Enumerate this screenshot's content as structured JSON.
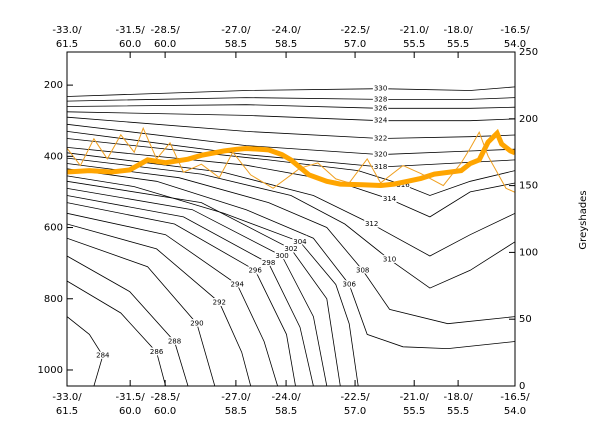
{
  "chart_data": {
    "type": "contour",
    "xlim": [
      0,
      100
    ],
    "xticks": [
      {
        "value": 0,
        "label": [
          "-33.0/",
          "61.5"
        ]
      },
      {
        "value": 14.1,
        "label": [
          "-31.5/",
          "60.0"
        ]
      },
      {
        "value": 21.9,
        "label": [
          "-28.5/",
          "60.0"
        ]
      },
      {
        "value": 37.7,
        "label": [
          "-27.0/",
          "58.5"
        ]
      },
      {
        "value": 48.9,
        "label": [
          "-24.0/",
          "58.5"
        ]
      },
      {
        "value": 64.3,
        "label": [
          "-22.5/",
          "57.0"
        ]
      },
      {
        "value": 77.5,
        "label": [
          "-21.0/",
          "55.5"
        ]
      },
      {
        "value": 87.3,
        "label": [
          "-18.0/",
          "55.5"
        ]
      },
      {
        "value": 100,
        "label": [
          "-16.5/",
          "54.0"
        ]
      }
    ],
    "ylim": [
      1045,
      107
    ],
    "yticks": [
      200,
      400,
      600,
      800,
      1000
    ],
    "y2label": "Greyshades",
    "y2lim": [
      0,
      250
    ],
    "y2ticks": [
      0,
      50,
      100,
      150,
      200,
      250
    ],
    "contour_color": "#000000",
    "contours": [
      {
        "level": 284,
        "x": [
          0,
          5,
          8,
          6
        ],
        "y": [
          850,
          900,
          960,
          1045
        ]
      },
      {
        "level": 286,
        "x": [
          0,
          12,
          20,
          22
        ],
        "y": [
          750,
          840,
          950,
          1045
        ]
      },
      {
        "level": 288,
        "x": [
          0,
          14,
          24,
          27
        ],
        "y": [
          680,
          780,
          920,
          1045
        ]
      },
      {
        "level": 290,
        "x": [
          0,
          18,
          29,
          33
        ],
        "y": [
          630,
          710,
          870,
          1045
        ]
      },
      {
        "level": 292,
        "x": [
          0,
          20,
          34,
          39,
          41
        ],
        "y": [
          590,
          660,
          810,
          950,
          1045
        ]
      },
      {
        "level": 294,
        "x": [
          0,
          22,
          38,
          44,
          47
        ],
        "y": [
          560,
          620,
          760,
          920,
          1045
        ]
      },
      {
        "level": 296,
        "x": [
          0,
          24,
          42,
          49,
          51
        ],
        "y": [
          530,
          590,
          720,
          900,
          1045
        ]
      },
      {
        "level": 298,
        "x": [
          0,
          26,
          45,
          52,
          55
        ],
        "y": [
          510,
          570,
          700,
          880,
          1045
        ]
      },
      {
        "level": 300,
        "x": [
          0,
          28,
          48,
          55,
          58
        ],
        "y": [
          490,
          550,
          680,
          850,
          1045
        ]
      },
      {
        "level": 302,
        "x": [
          0,
          30,
          50,
          58,
          61
        ],
        "y": [
          470,
          530,
          660,
          800,
          1045
        ]
      },
      {
        "level": 304,
        "x": [
          0,
          15,
          35,
          52,
          60,
          63,
          65
        ],
        "y": [
          455,
          485,
          560,
          640,
          760,
          870,
          1045
        ]
      },
      {
        "level": 306,
        "x": [
          0,
          20,
          40,
          55,
          63,
          67,
          75,
          85,
          100
        ],
        "y": [
          435,
          470,
          550,
          630,
          760,
          900,
          935,
          940,
          920
        ]
      },
      {
        "level": 308,
        "x": [
          0,
          25,
          45,
          58,
          66,
          72,
          85,
          100
        ],
        "y": [
          420,
          460,
          530,
          600,
          720,
          830,
          870,
          850
        ]
      },
      {
        "level": 310,
        "x": [
          0,
          30,
          50,
          62,
          72,
          81,
          90,
          100
        ],
        "y": [
          405,
          450,
          510,
          590,
          690,
          770,
          720,
          640
        ]
      },
      {
        "level": 312,
        "x": [
          0,
          35,
          55,
          68,
          81,
          90,
          100
        ],
        "y": [
          390,
          445,
          510,
          590,
          680,
          620,
          560
        ]
      },
      {
        "level": 314,
        "x": [
          0,
          40,
          60,
          72,
          81,
          90,
          100
        ],
        "y": [
          375,
          425,
          470,
          520,
          570,
          500,
          475
        ]
      },
      {
        "level": 316,
        "x": [
          0,
          45,
          65,
          75,
          81,
          90,
          100
        ],
        "y": [
          350,
          410,
          440,
          480,
          510,
          470,
          440
        ]
      },
      {
        "level": 318,
        "x": [
          0,
          40,
          70,
          85,
          100
        ],
        "y": [
          330,
          395,
          430,
          420,
          410
        ]
      },
      {
        "level": 320,
        "x": [
          0,
          40,
          70,
          90,
          100
        ],
        "y": [
          310,
          370,
          395,
          385,
          380
        ]
      },
      {
        "level": 322,
        "x": [
          0,
          40,
          70,
          90,
          100
        ],
        "y": [
          290,
          330,
          350,
          345,
          340
        ]
      },
      {
        "level": 324,
        "x": [
          0,
          40,
          70,
          90,
          100
        ],
        "y": [
          275,
          285,
          300,
          300,
          295
        ]
      },
      {
        "level": 326,
        "x": [
          0,
          40,
          70,
          90,
          100
        ],
        "y": [
          260,
          255,
          265,
          265,
          262
        ]
      },
      {
        "level": 328,
        "x": [
          0,
          40,
          70,
          90,
          100
        ],
        "y": [
          245,
          235,
          240,
          240,
          235
        ]
      },
      {
        "level": 330,
        "x": [
          0,
          40,
          70,
          90,
          100
        ],
        "y": [
          232,
          215,
          210,
          215,
          205
        ]
      }
    ],
    "series": [
      {
        "color": "#ffa500",
        "line_width": 5,
        "x": [
          0,
          5,
          10,
          14,
          18,
          22,
          27,
          30,
          35,
          38,
          40,
          43,
          45,
          48,
          50,
          54,
          58,
          61,
          66,
          70,
          73,
          76,
          79,
          82,
          85,
          88,
          90,
          92,
          94,
          96,
          97,
          99,
          100
        ],
        "values": [
          444,
          440,
          444,
          438,
          410,
          418,
          408,
          397,
          385,
          380,
          378,
          380,
          382,
          395,
          410,
          452,
          470,
          478,
          480,
          482,
          478,
          470,
          462,
          450,
          445,
          440,
          420,
          410,
          360,
          335,
          365,
          385,
          390
        ]
      },
      {
        "color": "#f0a020",
        "line_width": 1,
        "axis": "y2",
        "x": [
          0,
          3,
          6,
          9,
          12,
          15,
          17,
          20,
          23,
          26,
          30,
          34,
          37,
          41,
          46,
          52,
          56,
          60,
          63,
          67,
          70,
          75,
          79,
          84,
          88,
          90,
          92,
          94,
          96,
          98,
          100
        ],
        "values": [
          178,
          165,
          185,
          170,
          188,
          175,
          193,
          170,
          182,
          160,
          166,
          156,
          175,
          158,
          148,
          163,
          167,
          155,
          152,
          170,
          152,
          165,
          159,
          150,
          167,
          178,
          190,
          172,
          160,
          148,
          145
        ]
      }
    ]
  }
}
